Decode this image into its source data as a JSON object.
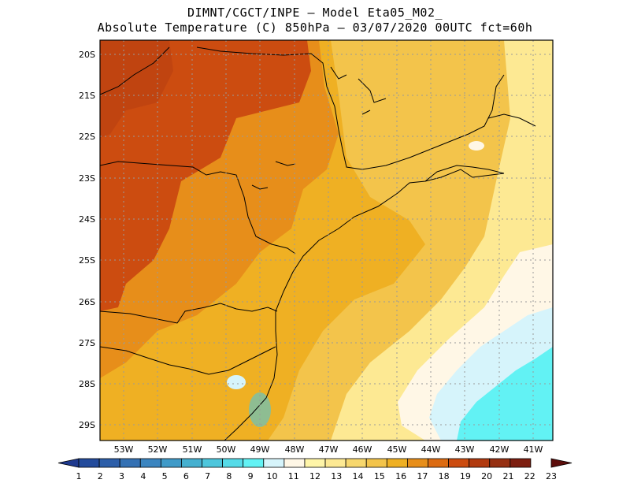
{
  "header": {
    "line1": "DIMNT/CGCT/INPE –  Model Eta05_M02_",
    "line2": "Absolute Temperature (C) 850hPa –  03/07/2020 00UTC fct=60h"
  },
  "axes": {
    "lat_labels": [
      "20S",
      "21S",
      "22S",
      "23S",
      "24S",
      "25S",
      "26S",
      "27S",
      "28S",
      "29S"
    ],
    "lon_labels": [
      "53W",
      "52W",
      "51W",
      "50W",
      "49W",
      "48W",
      "47W",
      "46W",
      "45W",
      "44W",
      "43W",
      "42W",
      "41W"
    ],
    "grid": true
  },
  "colorbar": {
    "labels": [
      "1",
      "2",
      "3",
      "4",
      "5",
      "6",
      "7",
      "8",
      "9",
      "10",
      "11",
      "12",
      "13",
      "14",
      "15",
      "16",
      "17",
      "18",
      "19",
      "20",
      "21",
      "22",
      "23"
    ],
    "colors": [
      "#1f3a8f",
      "#234b9c",
      "#2c5ea9",
      "#3471b4",
      "#3b85c0",
      "#3f9ac8",
      "#45b0d0",
      "#4dc6dc",
      "#55dbe8",
      "#62f2f4",
      "#d6f4fb",
      "#fff7e6",
      "#fff5a8",
      "#fde993",
      "#f7d76d",
      "#f3c44b",
      "#efb023",
      "#e78e1a",
      "#dc6b12",
      "#cc4c10",
      "#b13a0f",
      "#963012",
      "#7d1e10",
      "#5c0d0b"
    ]
  },
  "regions": [
    {
      "name": "far-west-hot-zone",
      "color": "#cc4c10"
    },
    {
      "name": "northwest-core",
      "color": "#c04410"
    },
    {
      "name": "central-orange",
      "color": "#e78e1a"
    },
    {
      "name": "coastal-gold",
      "color": "#efb023"
    },
    {
      "name": "interior-yellow",
      "color": "#f3c44b"
    },
    {
      "name": "ocean-pale-yellow",
      "color": "#fde993"
    },
    {
      "name": "ocean-cream",
      "color": "#fff7e6"
    },
    {
      "name": "ocean-light-cyan",
      "color": "#d6f4fb"
    },
    {
      "name": "ocean-cyan",
      "color": "#62f2f4"
    }
  ]
}
